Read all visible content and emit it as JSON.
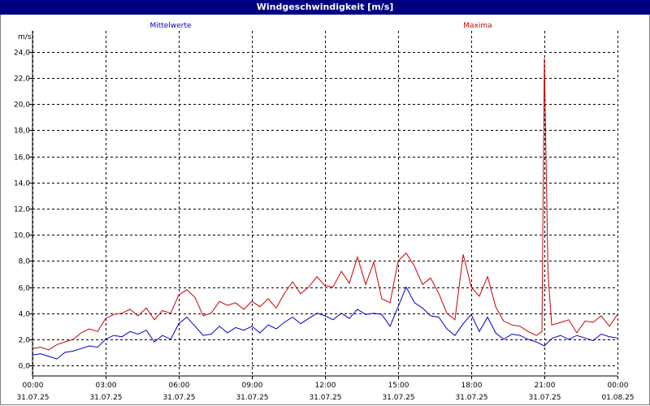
{
  "window": {
    "title": "Windgeschwindigkeit [m/s]"
  },
  "chart_data": {
    "type": "line",
    "ylabel": "m/s",
    "ylim": [
      -0.8,
      25.6
    ],
    "yticks": [
      0,
      2,
      4,
      6,
      8,
      10,
      12,
      14,
      16,
      18,
      20,
      22,
      24
    ],
    "ytick_labels": [
      "0,0",
      "2,0",
      "4,0",
      "6,0",
      "8,0",
      "10,0",
      "12,0",
      "14,0",
      "16,0",
      "18,0",
      "20,0",
      "22,0",
      "24,0"
    ],
    "xlim_hours": [
      0,
      24
    ],
    "xticks": [
      {
        "hour": 0,
        "time": "00:00",
        "date": "31.07.25"
      },
      {
        "hour": 3,
        "time": "03:00",
        "date": "31.07.25"
      },
      {
        "hour": 6,
        "time": "06:00",
        "date": "31.07.25"
      },
      {
        "hour": 9,
        "time": "09:00",
        "date": "31.07.25"
      },
      {
        "hour": 12,
        "time": "12:00",
        "date": "31.07.25"
      },
      {
        "hour": 15,
        "time": "15:00",
        "date": "31.07.25"
      },
      {
        "hour": 18,
        "time": "18:00",
        "date": "31.07.25"
      },
      {
        "hour": 21,
        "time": "21:00",
        "date": "31.07.25"
      },
      {
        "hour": 24,
        "time": "00:00",
        "date": "01.08.25"
      }
    ],
    "grid": true,
    "series": [
      {
        "name": "Mittelwerte",
        "color": "#0000cc",
        "x": [
          0,
          0.33,
          0.67,
          1,
          1.33,
          1.67,
          2,
          2.33,
          2.67,
          3,
          3.33,
          3.67,
          4,
          4.33,
          4.67,
          5,
          5.33,
          5.67,
          6,
          6.33,
          6.67,
          7,
          7.33,
          7.67,
          8,
          8.33,
          8.67,
          9,
          9.33,
          9.67,
          10,
          10.33,
          10.67,
          11,
          11.33,
          11.67,
          12,
          12.33,
          12.67,
          13,
          13.33,
          13.67,
          14,
          14.33,
          14.67,
          15,
          15.33,
          15.67,
          16,
          16.33,
          16.67,
          17,
          17.33,
          17.67,
          18,
          18.33,
          18.67,
          19,
          19.33,
          19.67,
          20,
          20.33,
          20.67,
          21,
          21.33,
          21.67,
          22,
          22.33,
          22.67,
          23,
          23.33,
          23.67,
          24
        ],
        "y": [
          0.8,
          0.9,
          0.7,
          0.5,
          1.0,
          1.1,
          1.3,
          1.5,
          1.4,
          2.0,
          2.3,
          2.2,
          2.6,
          2.4,
          2.7,
          1.8,
          2.3,
          2.0,
          3.2,
          3.7,
          3.0,
          2.3,
          2.4,
          3.0,
          2.5,
          2.9,
          2.7,
          3.0,
          2.5,
          3.1,
          2.8,
          3.3,
          3.7,
          3.2,
          3.6,
          4.0,
          3.8,
          3.5,
          4.0,
          3.6,
          4.3,
          3.9,
          4.0,
          3.9,
          3.0,
          4.5,
          6.0,
          4.8,
          4.4,
          3.8,
          3.7,
          2.8,
          2.3,
          3.2,
          3.9,
          2.6,
          3.7,
          2.5,
          2.0,
          2.4,
          2.3,
          2.0,
          1.8,
          1.5,
          2.1,
          2.3,
          2.0,
          2.3,
          2.1,
          1.9,
          2.4,
          2.2,
          2.1
        ]
      },
      {
        "name": "Maxima",
        "color": "#cc0000",
        "x": [
          0,
          0.33,
          0.67,
          1,
          1.33,
          1.67,
          2,
          2.33,
          2.67,
          3,
          3.33,
          3.67,
          4,
          4.33,
          4.67,
          5,
          5.33,
          5.67,
          6,
          6.33,
          6.67,
          7,
          7.33,
          7.67,
          8,
          8.33,
          8.67,
          9,
          9.33,
          9.67,
          10,
          10.33,
          10.67,
          11,
          11.33,
          11.67,
          12,
          12.33,
          12.67,
          13,
          13.33,
          13.67,
          14,
          14.33,
          14.67,
          15,
          15.33,
          15.67,
          16,
          16.33,
          16.67,
          17,
          17.33,
          17.67,
          18,
          18.33,
          18.67,
          19,
          19.33,
          19.67,
          20,
          20.33,
          20.67,
          20.9,
          21,
          21.05,
          21.15,
          21.3,
          21.67,
          22,
          22.33,
          22.67,
          23,
          23.33,
          23.67,
          24
        ],
        "y": [
          1.3,
          1.4,
          1.2,
          1.6,
          1.8,
          2.0,
          2.5,
          2.8,
          2.6,
          3.6,
          3.9,
          4.0,
          4.3,
          3.8,
          4.4,
          3.5,
          4.2,
          4.0,
          5.4,
          5.8,
          5.2,
          3.8,
          4.0,
          4.9,
          4.6,
          4.8,
          4.3,
          4.9,
          4.5,
          5.1,
          4.4,
          5.5,
          6.4,
          5.5,
          6.0,
          6.8,
          6.1,
          6.0,
          7.2,
          6.3,
          8.3,
          6.2,
          7.9,
          5.1,
          4.8,
          8.0,
          8.6,
          7.6,
          6.2,
          6.7,
          5.5,
          4.0,
          3.5,
          8.5,
          6.0,
          5.3,
          6.8,
          4.5,
          3.4,
          3.1,
          3.0,
          2.6,
          2.3,
          2.6,
          23.5,
          17.8,
          7.0,
          3.1,
          3.3,
          3.5,
          2.5,
          3.4,
          3.3,
          3.8,
          3.0,
          3.9
        ]
      }
    ]
  }
}
